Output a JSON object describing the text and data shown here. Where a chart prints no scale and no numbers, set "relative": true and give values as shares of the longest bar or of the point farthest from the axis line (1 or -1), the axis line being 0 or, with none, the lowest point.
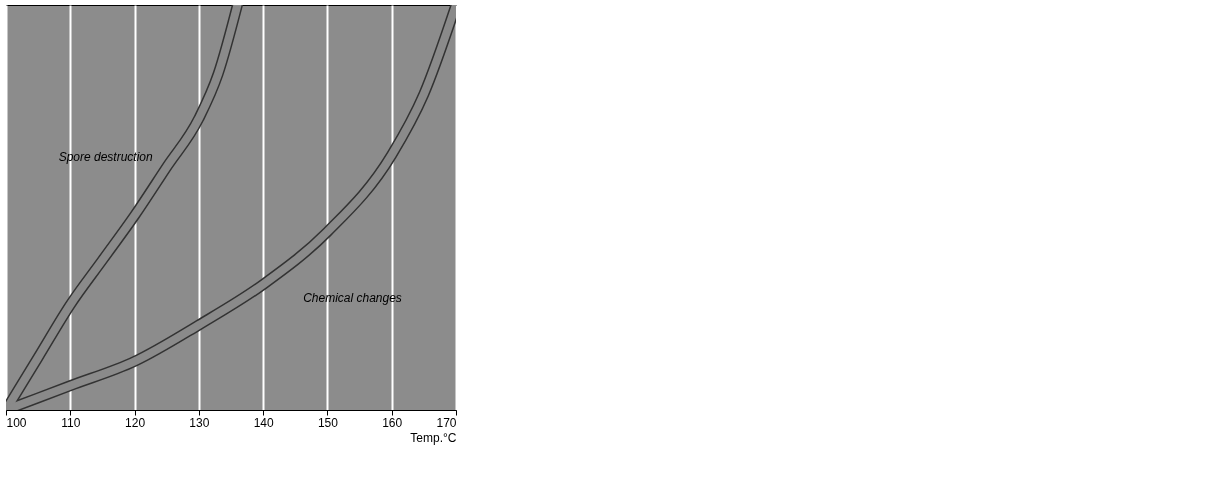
{
  "chart_data": {
    "type": "line",
    "relative": true,
    "xlabel": "Temp.°C",
    "xlim": [
      100,
      170
    ],
    "xticks": [
      100,
      110,
      120,
      130,
      140,
      150,
      160,
      170
    ],
    "grid": "x",
    "line_style": "solid",
    "series": [
      {
        "name": "Spore destruction",
        "color": "#8a8a8a",
        "x": [
          100,
          105,
          110,
          115,
          120,
          125,
          130,
          133,
          136
        ],
        "values": [
          0,
          0.13,
          0.26,
          0.37,
          0.48,
          0.6,
          0.72,
          0.83,
          1.0
        ]
      },
      {
        "name": "Chemical changes",
        "color": "#8a8a8a",
        "x": [
          100,
          110,
          120,
          130,
          140,
          150,
          160,
          165,
          170
        ],
        "values": [
          0,
          0.06,
          0.12,
          0.21,
          0.31,
          0.44,
          0.63,
          0.78,
          1.0
        ]
      }
    ]
  }
}
